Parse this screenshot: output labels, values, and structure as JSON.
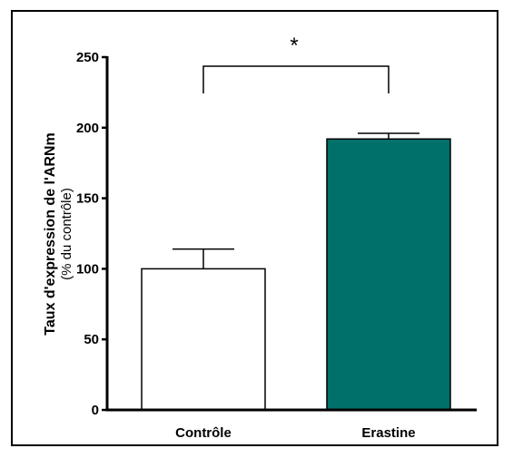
{
  "chart_data": {
    "type": "bar",
    "categories": [
      "Contrôle",
      "Erastine"
    ],
    "values": [
      100,
      192
    ],
    "errors": [
      14,
      4
    ],
    "ylim": [
      0,
      250
    ],
    "yticks": [
      "0",
      "50",
      "100",
      "150",
      "200",
      "250"
    ],
    "ytick_values": [
      0,
      50,
      100,
      150,
      200,
      250
    ],
    "ylabel": "Taux d'expression de l'ARNm",
    "ylabel_sub": "(% du contrôle)",
    "xlabel": "",
    "title": "",
    "bar_colors": [
      "#ffffff",
      "#00706b"
    ],
    "annotation": "*",
    "grid": false,
    "legend": "none"
  }
}
